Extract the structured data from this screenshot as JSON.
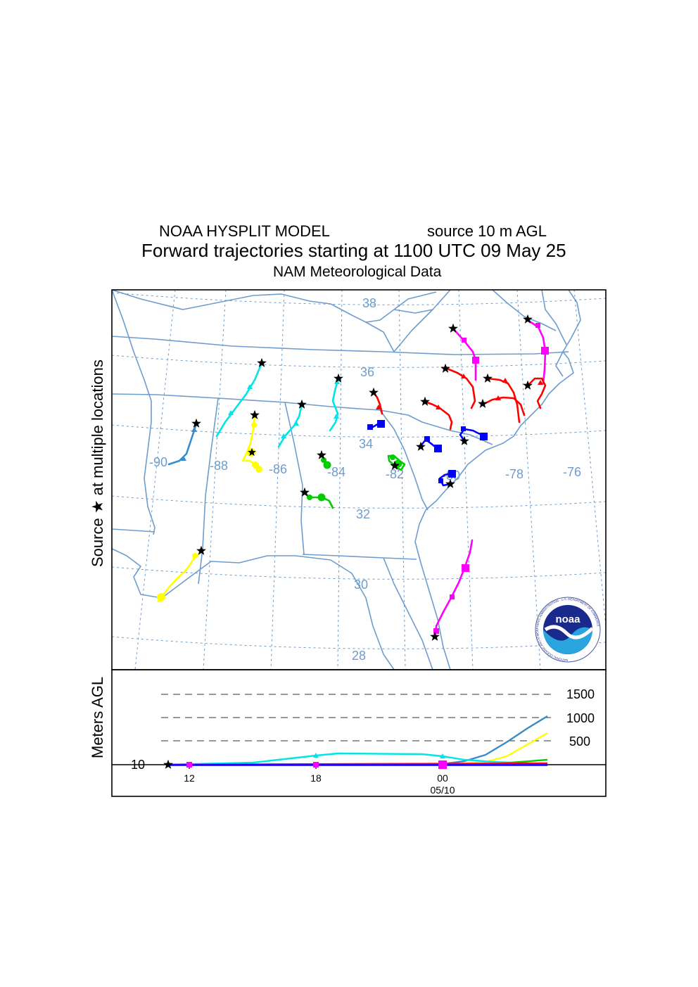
{
  "header": {
    "model_title": "NOAA HYSPLIT MODEL",
    "source_height": "source 10 m AGL",
    "run_title": "Forward trajectories starting at 1100 UTC 09 May 25",
    "met_data": "NAM  Meteorological Data"
  },
  "map": {
    "y_axis_label": "Source ★  at multiple locations",
    "lat_labels": [
      "38",
      "36",
      "34",
      "32",
      "30",
      "28"
    ],
    "lon_labels": [
      "-90",
      "-88",
      "-86",
      "-84",
      "-82",
      "-80",
      "-78",
      "-76"
    ],
    "logo_text": "noaa",
    "logo_ring_text": "NATIONAL OCEANIC AND ATMOSPHERIC ADMINISTRATION · U.S. DEPARTMENT OF COMMERCE",
    "colors": {
      "boundary": "#6e9ccc",
      "grid": "#6e9ccc",
      "red": "#ff0000",
      "blue": "#0000ff",
      "green": "#00cc00",
      "cyan": "#00e5e5",
      "magenta": "#ff00ff",
      "yellow": "#ffff00",
      "steelblue": "#3a8cc8"
    }
  },
  "height_panel": {
    "y_axis_label": "Meters AGL",
    "level_labels": [
      "1500",
      "1000",
      "500"
    ],
    "source_level_label": "10",
    "time_labels": [
      "12",
      "18",
      "00"
    ],
    "date_label": "05/10"
  }
}
